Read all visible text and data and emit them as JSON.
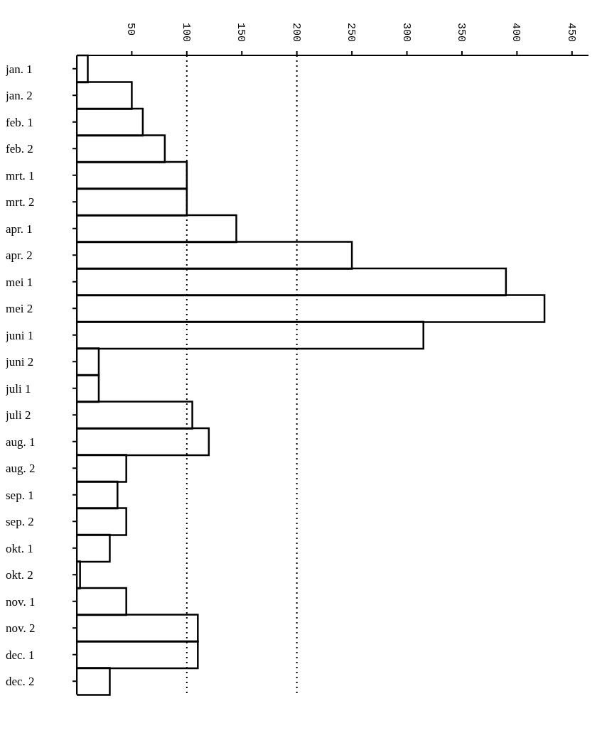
{
  "chart_data": {
    "type": "bar",
    "orientation": "horizontal",
    "categories": [
      "jan. 1",
      "jan. 2",
      "feb. 1",
      "feb. 2",
      "mrt. 1",
      "mrt. 2",
      "apr. 1",
      "apr. 2",
      "mei 1",
      "mei 2",
      "juni 1",
      "juni 2",
      "juli 1",
      "juli 2",
      "aug. 1",
      "aug. 2",
      "sep. 1",
      "sep. 2",
      "okt. 1",
      "okt. 2",
      "nov. 1",
      "nov. 2",
      "dec. 1",
      "dec. 2"
    ],
    "values": [
      10,
      50,
      60,
      80,
      100,
      100,
      145,
      250,
      390,
      425,
      315,
      20,
      20,
      105,
      120,
      45,
      37,
      45,
      30,
      3,
      45,
      110,
      110,
      30
    ],
    "color": "#000000",
    "xlim": [
      0,
      465
    ],
    "xticks": [
      50,
      100,
      150,
      200,
      250,
      300,
      350,
      400,
      450
    ],
    "ref_lines": [
      {
        "axis": "x",
        "value": 100,
        "line_style": "dotted",
        "color": "#000000"
      },
      {
        "axis": "x",
        "value": 200,
        "line_style": "dotted",
        "color": "#000000"
      }
    ],
    "grid": false,
    "legend": false
  }
}
